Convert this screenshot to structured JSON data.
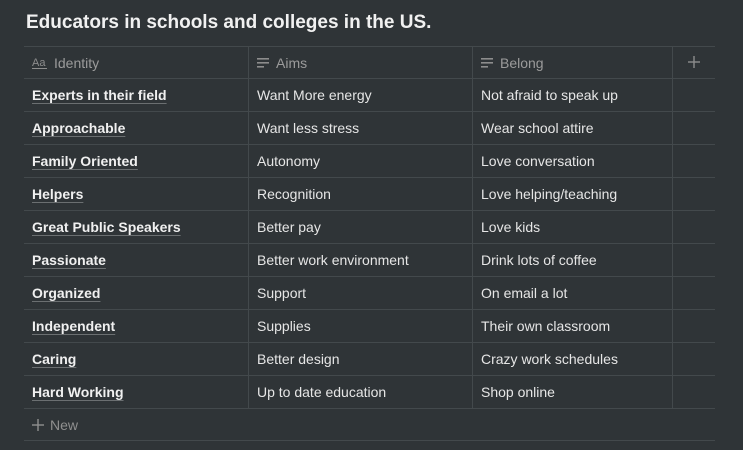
{
  "page": {
    "title": "Educators in schools and colleges in the US."
  },
  "table": {
    "columns": [
      {
        "label": "Identity",
        "icon": "title-aa-icon"
      },
      {
        "label": "Aims",
        "icon": "text-lines-icon"
      },
      {
        "label": "Belong",
        "icon": "text-lines-icon"
      }
    ],
    "add_column_icon": "plus-icon",
    "rows": [
      {
        "identity": "Experts in their field",
        "aims": "Want More energy",
        "belong": "Not afraid to speak up"
      },
      {
        "identity": "Approachable",
        "aims": "Want less stress",
        "belong": "Wear school attire"
      },
      {
        "identity": "Family Oriented",
        "aims": "Autonomy",
        "belong": "Love conversation"
      },
      {
        "identity": "Helpers",
        "aims": "Recognition",
        "belong": "Love helping/teaching"
      },
      {
        "identity": "Great Public Speakers",
        "aims": "Better pay",
        "belong": "Love kids"
      },
      {
        "identity": "Passionate",
        "aims": "Better work environment",
        "belong": "Drink lots of coffee"
      },
      {
        "identity": "Organized",
        "aims": "Support",
        "belong": "On email a lot"
      },
      {
        "identity": "Independent",
        "aims": "Supplies",
        "belong": "Their own classroom"
      },
      {
        "identity": "Caring",
        "aims": "Better design",
        "belong": "Crazy work schedules"
      },
      {
        "identity": "Hard Working",
        "aims": "Up to date education",
        "belong": "Shop online"
      }
    ],
    "new_label": "New"
  },
  "colors": {
    "background": "#2f3437",
    "border": "#43494c",
    "text": "#e6e6e6",
    "muted": "#9b9b9b"
  }
}
